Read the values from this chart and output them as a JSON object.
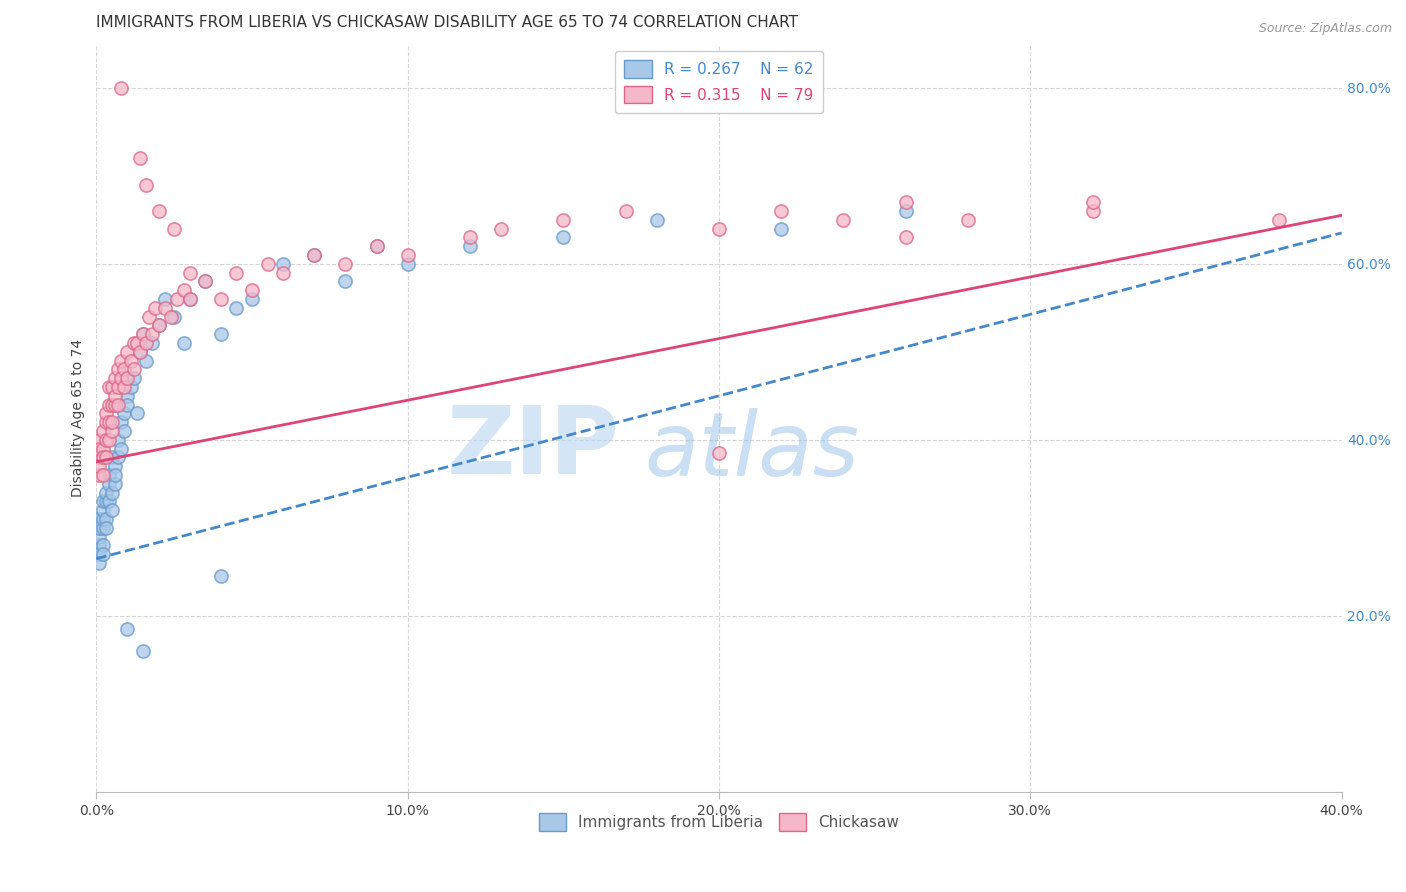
{
  "title": "IMMIGRANTS FROM LIBERIA VS CHICKASAW DISABILITY AGE 65 TO 74 CORRELATION CHART",
  "source": "Source: ZipAtlas.com",
  "ylabel": "Disability Age 65 to 74",
  "xlim": [
    0.0,
    0.4
  ],
  "ylim": [
    0.0,
    0.85
  ],
  "xtick_vals": [
    0.0,
    0.1,
    0.2,
    0.3,
    0.4
  ],
  "ytick_vals": [
    0.2,
    0.4,
    0.6,
    0.8
  ],
  "liberia_color": "#a8c8e8",
  "liberia_edge": "#6699cc",
  "chickasaw_color": "#f5b8c8",
  "chickasaw_edge": "#dd6688",
  "line_liberia_color": "#4488cc",
  "line_chickasaw_color": "#dd4477",
  "R_liberia": 0.267,
  "N_liberia": 62,
  "R_chickasaw": 0.315,
  "N_chickasaw": 79,
  "legend_label_liberia": "Immigrants from Liberia",
  "legend_label_chickasaw": "Chickasaw",
  "watermark_zip": "ZIP",
  "watermark_atlas": "atlas",
  "background_color": "#ffffff",
  "grid_color": "#cccccc",
  "title_fontsize": 11,
  "axis_label_fontsize": 10,
  "tick_fontsize": 10,
  "legend_fontsize": 11,
  "source_fontsize": 9,
  "line_liberia_y0": 0.265,
  "line_liberia_y1": 0.635,
  "line_chickasaw_y0": 0.375,
  "line_chickasaw_y1": 0.655,
  "liberia_x": [
    0.001,
    0.001,
    0.001,
    0.001,
    0.001,
    0.001,
    0.002,
    0.002,
    0.002,
    0.002,
    0.002,
    0.002,
    0.003,
    0.003,
    0.003,
    0.003,
    0.004,
    0.004,
    0.004,
    0.005,
    0.005,
    0.005,
    0.006,
    0.006,
    0.006,
    0.007,
    0.007,
    0.008,
    0.008,
    0.009,
    0.009,
    0.01,
    0.01,
    0.011,
    0.012,
    0.013,
    0.014,
    0.015,
    0.016,
    0.018,
    0.02,
    0.022,
    0.025,
    0.028,
    0.03,
    0.035,
    0.04,
    0.045,
    0.05,
    0.06,
    0.07,
    0.08,
    0.09,
    0.1,
    0.12,
    0.15,
    0.18,
    0.22,
    0.26,
    0.01,
    0.015,
    0.04
  ],
  "liberia_y": [
    0.28,
    0.29,
    0.31,
    0.3,
    0.27,
    0.26,
    0.3,
    0.31,
    0.28,
    0.32,
    0.33,
    0.27,
    0.33,
    0.31,
    0.3,
    0.34,
    0.36,
    0.33,
    0.35,
    0.34,
    0.38,
    0.32,
    0.35,
    0.37,
    0.36,
    0.4,
    0.38,
    0.42,
    0.39,
    0.41,
    0.43,
    0.45,
    0.44,
    0.46,
    0.47,
    0.43,
    0.5,
    0.52,
    0.49,
    0.51,
    0.53,
    0.56,
    0.54,
    0.51,
    0.56,
    0.58,
    0.52,
    0.55,
    0.56,
    0.6,
    0.61,
    0.58,
    0.62,
    0.6,
    0.62,
    0.63,
    0.65,
    0.64,
    0.66,
    0.185,
    0.16,
    0.245
  ],
  "chickasaw_x": [
    0.001,
    0.001,
    0.001,
    0.001,
    0.001,
    0.002,
    0.002,
    0.002,
    0.002,
    0.003,
    0.003,
    0.003,
    0.003,
    0.004,
    0.004,
    0.004,
    0.004,
    0.005,
    0.005,
    0.005,
    0.005,
    0.006,
    0.006,
    0.006,
    0.007,
    0.007,
    0.007,
    0.008,
    0.008,
    0.009,
    0.009,
    0.01,
    0.01,
    0.011,
    0.012,
    0.012,
    0.013,
    0.014,
    0.015,
    0.016,
    0.017,
    0.018,
    0.019,
    0.02,
    0.022,
    0.024,
    0.026,
    0.028,
    0.03,
    0.035,
    0.04,
    0.045,
    0.05,
    0.055,
    0.06,
    0.07,
    0.08,
    0.09,
    0.1,
    0.12,
    0.13,
    0.15,
    0.17,
    0.2,
    0.22,
    0.24,
    0.26,
    0.28,
    0.32,
    0.008,
    0.014,
    0.016,
    0.02,
    0.025,
    0.03,
    0.2,
    0.26,
    0.32,
    0.38
  ],
  "chickasaw_y": [
    0.4,
    0.38,
    0.36,
    0.39,
    0.37,
    0.39,
    0.41,
    0.36,
    0.38,
    0.4,
    0.42,
    0.38,
    0.43,
    0.4,
    0.44,
    0.42,
    0.46,
    0.41,
    0.44,
    0.42,
    0.46,
    0.44,
    0.47,
    0.45,
    0.46,
    0.48,
    0.44,
    0.47,
    0.49,
    0.46,
    0.48,
    0.47,
    0.5,
    0.49,
    0.51,
    0.48,
    0.51,
    0.5,
    0.52,
    0.51,
    0.54,
    0.52,
    0.55,
    0.53,
    0.55,
    0.54,
    0.56,
    0.57,
    0.56,
    0.58,
    0.56,
    0.59,
    0.57,
    0.6,
    0.59,
    0.61,
    0.6,
    0.62,
    0.61,
    0.63,
    0.64,
    0.65,
    0.66,
    0.64,
    0.66,
    0.65,
    0.67,
    0.65,
    0.66,
    0.8,
    0.72,
    0.69,
    0.66,
    0.64,
    0.59,
    0.385,
    0.63,
    0.67,
    0.65
  ]
}
